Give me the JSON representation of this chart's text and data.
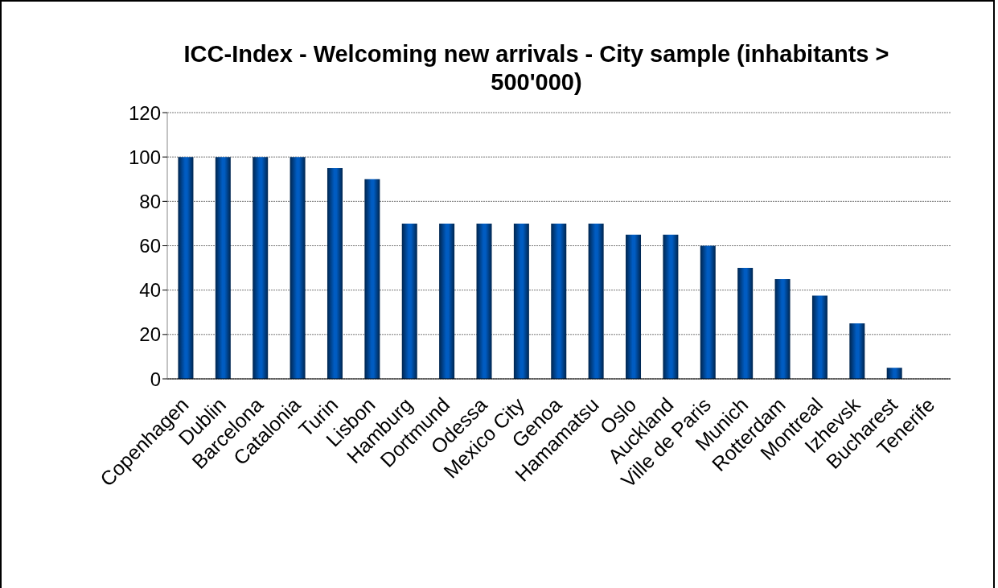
{
  "chart_data": {
    "type": "bar",
    "title": "ICC-Index - Welcoming new arrivals - City sample (inhabitants > 500'000)",
    "categories": [
      "Copenhagen",
      "Dublin",
      "Barcelona",
      "Catalonia",
      "Turin",
      "Lisbon",
      "Hamburg",
      "Dortmund",
      "Odessa",
      "Mexico City",
      "Genoa",
      "Hamamatsu",
      "Oslo",
      "Auckland",
      "Ville de Paris",
      "Munich",
      "Rotterdam",
      "Montreal",
      "Izhevsk",
      "Bucharest",
      "Tenerife"
    ],
    "values": [
      100,
      100,
      100,
      100,
      95,
      90,
      70,
      70,
      70,
      70,
      70,
      70,
      65,
      65,
      60,
      50,
      45,
      37.5,
      25,
      5,
      0
    ],
    "color": "#005cc2",
    "ylim": [
      0,
      120
    ],
    "yticks": [
      0,
      20,
      40,
      60,
      80,
      100,
      120
    ],
    "grid": "y",
    "legend": false
  }
}
